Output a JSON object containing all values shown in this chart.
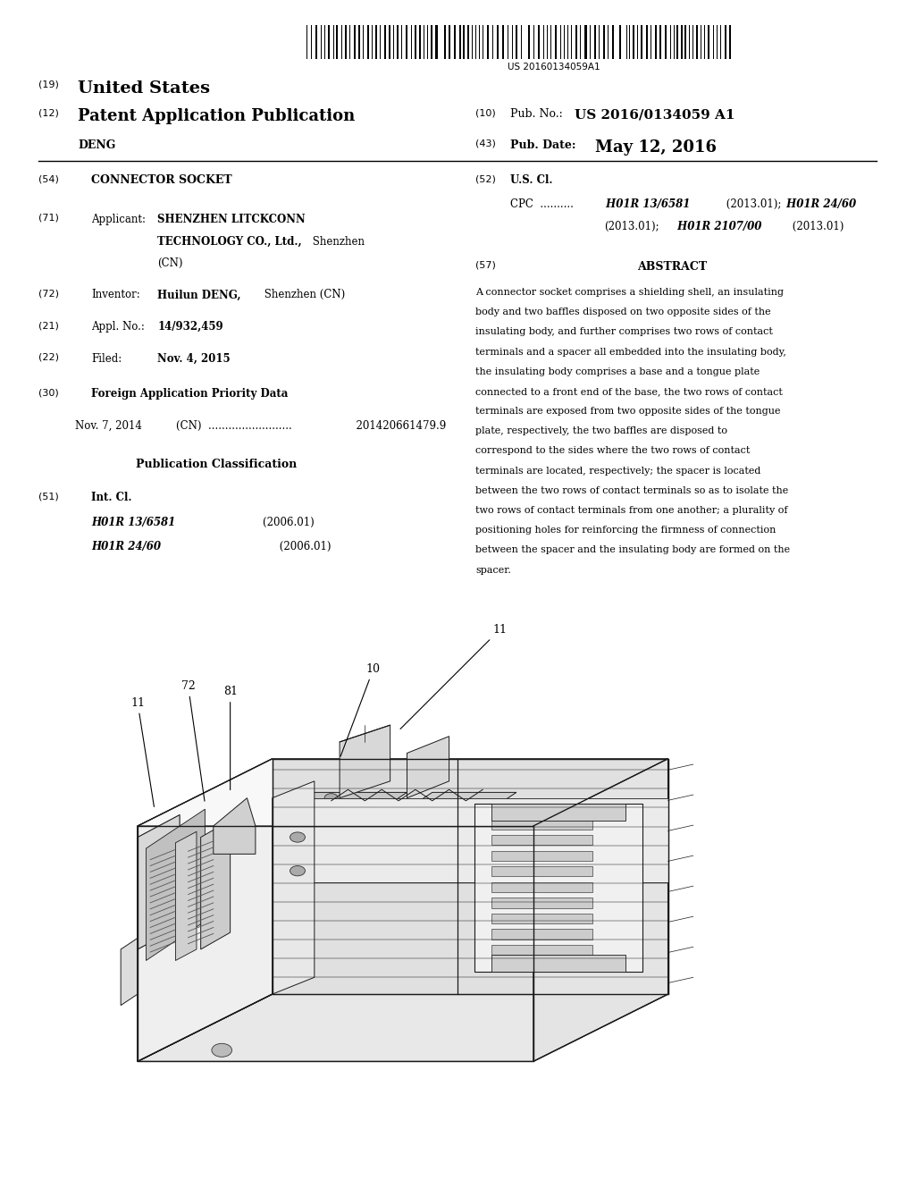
{
  "bg": "#ffffff",
  "barcode_num": "US 20160134059A1",
  "abstract": "A connector socket comprises a shielding shell, an insulating body and two baffles disposed on two opposite sides of the insulating body, and further comprises two rows of contact terminals and a spacer all embedded into the insulating body, the insulating body comprises a base and a tongue plate connected to a front end of the base, the two rows of contact terminals are exposed from two opposite sides of the tongue plate, respectively, the two baffles are disposed to correspond to the sides where the two rows of contact terminals are located, respectively; the spacer is located between the two rows of contact terminals so as to isolate the two rows of contact terminals from one another; a plurality of positioning holes for reinforcing the firmness of connection between the spacer and the insulating body are formed on the spacer.",
  "f51_c1": "H01R 13/6581",
  "f51_d1": "(2006.01)",
  "f51_c2": "H01R 24/60",
  "f51_d2": "(2006.01)",
  "f52_c1": "H01R 13/6581",
  "f52_d1": "(2013.01);",
  "f52_c2": "H01R 24/60",
  "f52_d2": "(2013.01);",
  "f52_c3": "H01R 2107/00",
  "f52_d3": "(2013.01)"
}
